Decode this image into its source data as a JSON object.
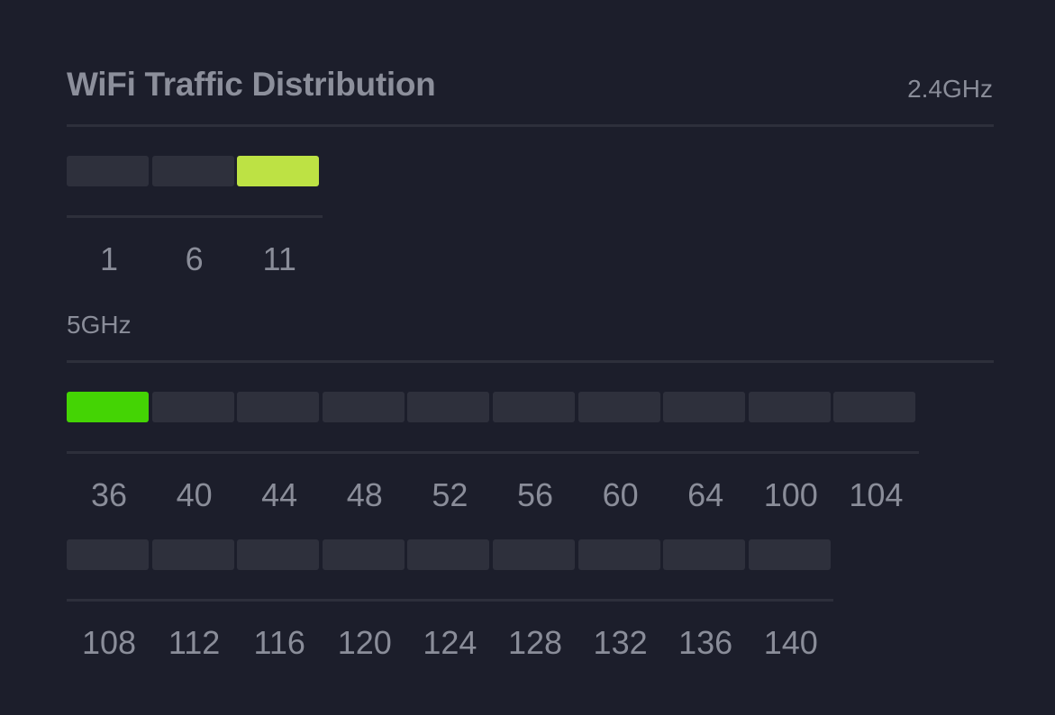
{
  "widget": {
    "title": "WiFi Traffic Distribution"
  },
  "bands": [
    {
      "label": "2.4GHz",
      "channels": [
        {
          "number": "1",
          "active": false,
          "color": "#2e303c"
        },
        {
          "number": "6",
          "active": false,
          "color": "#2e303c"
        },
        {
          "number": "11",
          "active": true,
          "color": "#bde244"
        }
      ]
    },
    {
      "label": "5GHz",
      "channels": [
        {
          "number": "36",
          "active": true,
          "color": "#44d404"
        },
        {
          "number": "40",
          "active": false,
          "color": "#2e303c"
        },
        {
          "number": "44",
          "active": false,
          "color": "#2e303c"
        },
        {
          "number": "48",
          "active": false,
          "color": "#2e303c"
        },
        {
          "number": "52",
          "active": false,
          "color": "#2e303c"
        },
        {
          "number": "56",
          "active": false,
          "color": "#2e303c"
        },
        {
          "number": "60",
          "active": false,
          "color": "#2e303c"
        },
        {
          "number": "64",
          "active": false,
          "color": "#2e303c"
        },
        {
          "number": "100",
          "active": false,
          "color": "#2e303c"
        },
        {
          "number": "104",
          "active": false,
          "color": "#2e303c"
        },
        {
          "number": "108",
          "active": false,
          "color": "#2e303c"
        },
        {
          "number": "112",
          "active": false,
          "color": "#2e303c"
        },
        {
          "number": "116",
          "active": false,
          "color": "#2e303c"
        },
        {
          "number": "120",
          "active": false,
          "color": "#2e303c"
        },
        {
          "number": "124",
          "active": false,
          "color": "#2e303c"
        },
        {
          "number": "128",
          "active": false,
          "color": "#2e303c"
        },
        {
          "number": "132",
          "active": false,
          "color": "#2e303c"
        },
        {
          "number": "136",
          "active": false,
          "color": "#2e303c"
        },
        {
          "number": "140",
          "active": false,
          "color": "#2e303c"
        }
      ]
    }
  ],
  "colors": {
    "background": "#1c1e2b",
    "idle_cell": "#2e303c",
    "divider": "#2d2f3b",
    "text": "#8a8d99"
  }
}
